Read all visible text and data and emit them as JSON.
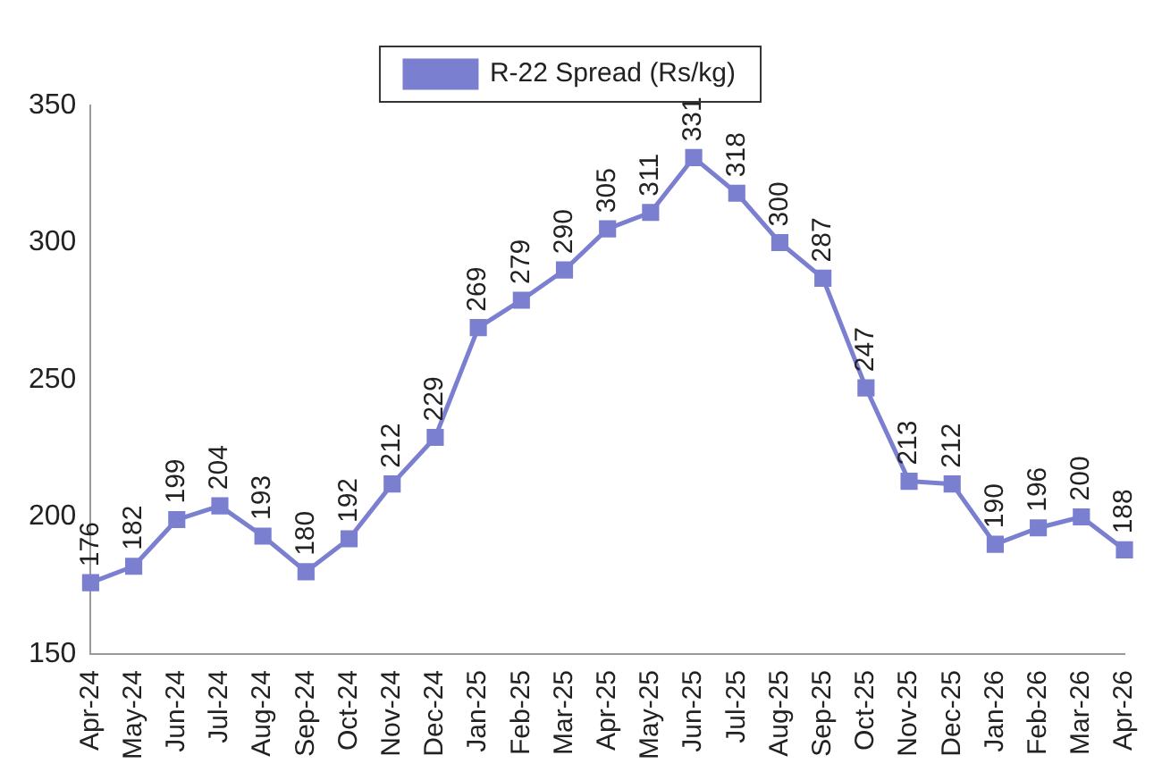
{
  "chart_data": {
    "type": "line",
    "categories": [
      "Apr-24",
      "May-24",
      "Jun-24",
      "Jul-24",
      "Aug-24",
      "Sep-24",
      "Oct-24",
      "Nov-24",
      "Dec-24",
      "Jan-25",
      "Feb-25",
      "Mar-25",
      "Apr-25",
      "May-25",
      "Jun-25",
      "Jul-25",
      "Aug-25",
      "Sep-25",
      "Oct-25",
      "Nov-25",
      "Dec-25",
      "Jan-26",
      "Feb-26",
      "Mar-26",
      "Apr-26"
    ],
    "series": [
      {
        "name": "R-22 Spread (Rs/kg)",
        "color": "#7b7fd0",
        "values": [
          176,
          182,
          199,
          204,
          193,
          180,
          192,
          212,
          229,
          269,
          279,
          290,
          305,
          311,
          331,
          318,
          300,
          287,
          247,
          213,
          212,
          190,
          196,
          200,
          188
        ]
      }
    ],
    "ylim": [
      150,
      350
    ],
    "yticks": [
      150,
      200,
      250,
      300,
      350
    ],
    "grid": false,
    "legend": "top",
    "marker": "square",
    "line_style": "solid",
    "data_labels": true
  }
}
